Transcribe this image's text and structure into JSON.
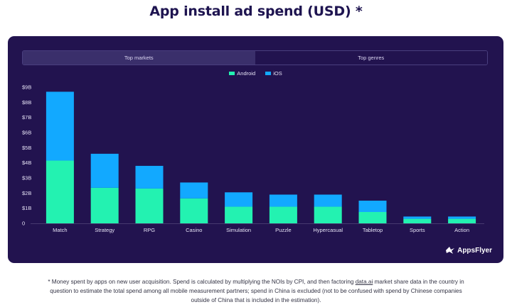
{
  "page": {
    "title": "App install ad spend (USD) *",
    "tabs": [
      {
        "label": "Top markets",
        "active": true
      },
      {
        "label": "Top genres",
        "active": false
      }
    ],
    "logo_text": "AppsFlyer",
    "footnote": {
      "before": "* Money spent by apps on new user acquisition. Spend is calculated by multiplying the NOIs by CPI, and then factoring ",
      "link": "data.ai",
      "after": " market share data in the country in question to estimate the total spend among all mobile measurement partners; spend in China is excluded (not to be confused with spend by Chinese companies outside of China that is included in the estimation)."
    }
  },
  "colors": {
    "android": "#23f2b1",
    "ios": "#12a9ff",
    "panel": "#22134f"
  },
  "chart_data": {
    "type": "bar",
    "stacked": true,
    "categories": [
      "Match",
      "Strategy",
      "RPG",
      "Casino",
      "Simulation",
      "Puzzle",
      "Hypercasual",
      "Tabletop",
      "Sports",
      "Action"
    ],
    "series": [
      {
        "name": "Android",
        "values": [
          4.15,
          2.35,
          2.3,
          1.65,
          1.1,
          1.1,
          1.1,
          0.75,
          0.3,
          0.3
        ]
      },
      {
        "name": "iOS",
        "values": [
          4.55,
          2.25,
          1.5,
          1.05,
          0.95,
          0.8,
          0.8,
          0.75,
          0.15,
          0.15
        ]
      }
    ],
    "y_ticks": [
      "0",
      "$1B",
      "$2B",
      "$3B",
      "$4B",
      "$5B",
      "$6B",
      "$7B",
      "$8B",
      "$9B"
    ],
    "ylim": [
      0,
      9
    ],
    "legend_position": "top-center",
    "grid": false
  }
}
